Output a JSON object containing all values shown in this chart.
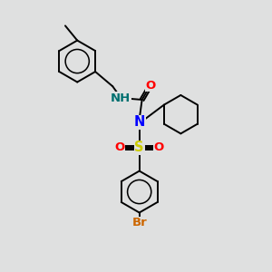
{
  "background_color": "#dfe0e0",
  "atom_colors": {
    "N": "#0000ff",
    "O": "#ff0000",
    "S": "#cccc00",
    "Br": "#cc6600",
    "H": "#007070",
    "C": "#000000"
  },
  "bond_color": "#000000",
  "bond_width": 1.4,
  "font_size_atom": 9.5
}
